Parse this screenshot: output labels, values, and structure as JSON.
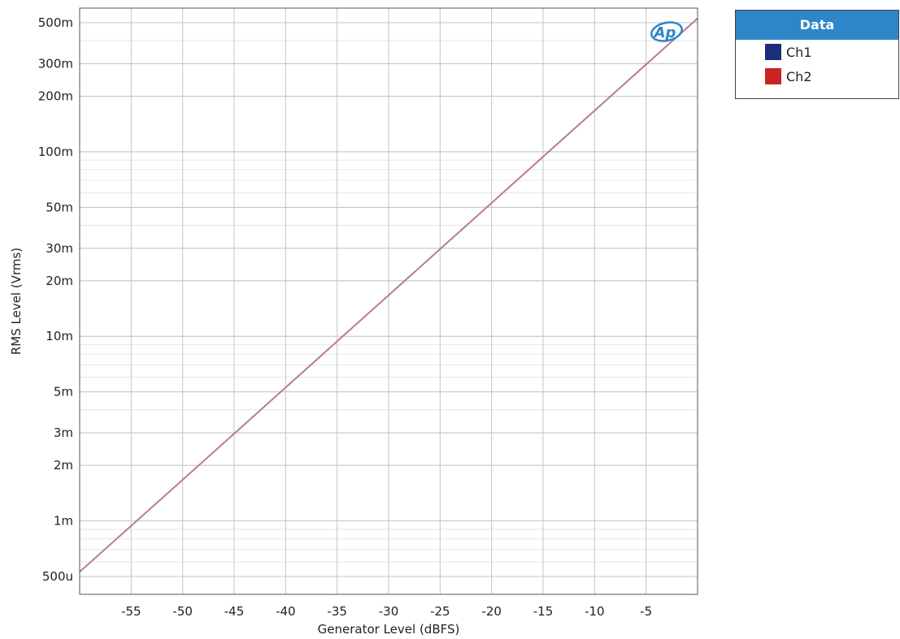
{
  "chart_data": {
    "type": "line",
    "title": "",
    "xlabel": "Generator Level (dBFS)",
    "ylabel": "RMS Level (Vrms)",
    "xlim": [
      -60,
      0
    ],
    "ylim": [
      0.0004,
      0.6
    ],
    "y_scale": "log",
    "grid": true,
    "logo": "Ap",
    "x_ticks": [
      {
        "value": -55,
        "label": "-55"
      },
      {
        "value": -50,
        "label": "-50"
      },
      {
        "value": -45,
        "label": "-45"
      },
      {
        "value": -40,
        "label": "-40"
      },
      {
        "value": -35,
        "label": "-35"
      },
      {
        "value": -30,
        "label": "-30"
      },
      {
        "value": -25,
        "label": "-25"
      },
      {
        "value": -20,
        "label": "-20"
      },
      {
        "value": -15,
        "label": "-15"
      },
      {
        "value": -10,
        "label": "-10"
      },
      {
        "value": -5,
        "label": "-5"
      }
    ],
    "y_ticks": [
      {
        "value": 0.0005,
        "label": "500u"
      },
      {
        "value": 0.001,
        "label": "1m"
      },
      {
        "value": 0.002,
        "label": "2m"
      },
      {
        "value": 0.003,
        "label": "3m"
      },
      {
        "value": 0.005,
        "label": "5m"
      },
      {
        "value": 0.01,
        "label": "10m"
      },
      {
        "value": 0.02,
        "label": "20m"
      },
      {
        "value": 0.03,
        "label": "30m"
      },
      {
        "value": 0.05,
        "label": "50m"
      },
      {
        "value": 0.1,
        "label": "100m"
      },
      {
        "value": 0.2,
        "label": "200m"
      },
      {
        "value": 0.3,
        "label": "300m"
      },
      {
        "value": 0.5,
        "label": "500m"
      }
    ],
    "legend": {
      "title": "Data",
      "position": "top-right",
      "entries": [
        {
          "name": "Ch1",
          "color": "#1a2f7a"
        },
        {
          "name": "Ch2",
          "color": "#cc2222"
        }
      ]
    },
    "series": [
      {
        "name": "Ch1",
        "color": "#7a6aa0",
        "x": [
          -60,
          -55,
          -50,
          -45,
          -40,
          -35,
          -30,
          -25,
          -20,
          -15,
          -10,
          -5,
          0
        ],
        "y": [
          0.00053,
          0.00094,
          0.00167,
          0.00297,
          0.00528,
          0.0094,
          0.0167,
          0.0297,
          0.0528,
          0.094,
          0.167,
          0.297,
          0.528
        ]
      },
      {
        "name": "Ch2",
        "color": "#c87a80",
        "x": [
          -60,
          -55,
          -50,
          -45,
          -40,
          -35,
          -30,
          -25,
          -20,
          -15,
          -10,
          -5,
          0
        ],
        "y": [
          0.00053,
          0.00094,
          0.00167,
          0.00297,
          0.00528,
          0.0094,
          0.0167,
          0.0297,
          0.0528,
          0.094,
          0.167,
          0.297,
          0.528
        ]
      }
    ]
  }
}
